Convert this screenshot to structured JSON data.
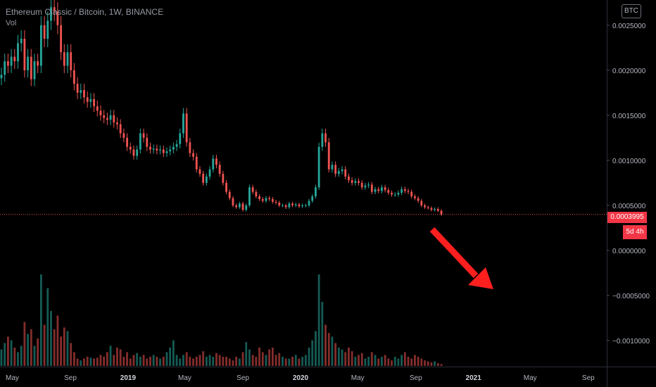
{
  "header": {
    "symbol_line": "Ethereum Classic / Bitcoin, 1W, BINANCE",
    "volume_label": "Vol"
  },
  "currency_badge": "BTC",
  "last_price_label": "0.0003995",
  "countdown_label": "5d 4h",
  "colors": {
    "up": "#26a69a",
    "down": "#ef5350",
    "arrow": "#ff1f1f",
    "last_price_line": "#ef5350"
  },
  "annotation": {
    "type": "arrow",
    "direction": "down-right",
    "color": "#ff1f1f"
  },
  "chart_data": {
    "type": "candlestick",
    "title": "Ethereum Classic / Bitcoin, 1W, BINANCE",
    "y_tick_labels": [
      "0.0025000",
      "0.0020000",
      "0.0015000",
      "0.0010000",
      "0.0005000",
      "0.0000000",
      "−0.0005000",
      "−0.0010000"
    ],
    "y_tick_values": [
      0.0025,
      0.002,
      0.0015,
      0.001,
      0.0005,
      0.0,
      -0.0005,
      -0.001
    ],
    "ylim": [
      -0.00129,
      0.00278
    ],
    "x_tick_labels": [
      "May",
      "Sep",
      "2019",
      "May",
      "Sep",
      "2020",
      "May",
      "Sep",
      "2021",
      "May",
      "Sep"
    ],
    "x_tick_dates": [
      "2018-05-01",
      "2018-09-01",
      "2019-01-01",
      "2019-05-01",
      "2019-09-01",
      "2020-01-01",
      "2020-05-01",
      "2020-09-01",
      "2021-01-01",
      "2021-05-01",
      "2021-09-01"
    ],
    "x_start": "2018-04-05",
    "x_end": "2021-10-10",
    "last_price": 0.0003995,
    "weekly_closes": [
      0.00195,
      0.0021,
      0.00205,
      0.00215,
      0.0021,
      0.0023,
      0.00235,
      0.002,
      0.00215,
      0.0019,
      0.0021,
      0.00205,
      0.0025,
      0.00235,
      0.00255,
      0.0027,
      0.00265,
      0.0025,
      0.0022,
      0.00205,
      0.0022,
      0.002,
      0.00185,
      0.00175,
      0.00178,
      0.0017,
      0.00165,
      0.00168,
      0.0016,
      0.00155,
      0.0015,
      0.00147,
      0.00145,
      0.0015,
      0.00142,
      0.0014,
      0.0013,
      0.00125,
      0.00115,
      0.00112,
      0.00105,
      0.00112,
      0.0013,
      0.00125,
      0.00115,
      0.00112,
      0.00113,
      0.00111,
      0.00112,
      0.00108,
      0.0011,
      0.00112,
      0.00115,
      0.00118,
      0.0013,
      0.00152,
      0.0012,
      0.00108,
      0.00104,
      0.0009,
      0.00085,
      0.00075,
      0.00082,
      0.0009,
      0.00102,
      0.00095,
      0.00085,
      0.00075,
      0.00065,
      0.00058,
      0.0005,
      0.00048,
      0.00052,
      0.00045,
      0.0005,
      0.0007,
      0.00065,
      0.0006,
      0.00057,
      0.00055,
      0.00058,
      0.00057,
      0.00054,
      0.00053,
      0.0005,
      0.0005,
      0.00048,
      0.00052,
      0.0005,
      0.00051,
      0.00049,
      0.0005,
      0.0005,
      0.00055,
      0.0006,
      0.0007,
      0.00115,
      0.0013,
      0.0012,
      0.0009,
      0.00095,
      0.00085,
      0.00088,
      0.0009,
      0.00082,
      0.00078,
      0.00075,
      0.00077,
      0.00075,
      0.0007,
      0.00072,
      0.00073,
      0.00065,
      0.00068,
      0.00066,
      0.0007,
      0.00067,
      0.00064,
      0.00062,
      0.00062,
      0.00064,
      0.00068,
      0.00066,
      0.00065,
      0.0006,
      0.00058,
      0.00055,
      0.0005,
      0.00048,
      0.00047,
      0.00045,
      0.00046,
      0.00044,
      0.0004
    ],
    "weekly_volumes": [
      0.18,
      0.25,
      0.32,
      0.28,
      0.2,
      0.15,
      0.22,
      0.48,
      0.35,
      0.4,
      0.22,
      0.3,
      1.0,
      0.45,
      0.85,
      0.6,
      0.4,
      0.55,
      0.32,
      0.42,
      0.38,
      0.25,
      0.15,
      0.08,
      0.06,
      0.08,
      0.1,
      0.09,
      0.08,
      0.09,
      0.12,
      0.1,
      0.15,
      0.22,
      0.12,
      0.2,
      0.18,
      0.1,
      0.15,
      0.08,
      0.12,
      0.14,
      0.1,
      0.12,
      0.08,
      0.1,
      0.12,
      0.1,
      0.08,
      0.1,
      0.15,
      0.2,
      0.28,
      0.12,
      0.08,
      0.12,
      0.15,
      0.1,
      0.08,
      0.1,
      0.12,
      0.16,
      0.1,
      0.12,
      0.1,
      0.14,
      0.12,
      0.1,
      0.1,
      0.08,
      0.06,
      0.1,
      0.08,
      0.15,
      0.26,
      0.18,
      0.12,
      0.1,
      0.2,
      0.15,
      0.12,
      0.18,
      0.2,
      0.12,
      0.14,
      0.1,
      0.08,
      0.08,
      0.1,
      0.12,
      0.08,
      0.1,
      0.12,
      0.2,
      0.28,
      0.38,
      1.0,
      0.7,
      0.45,
      0.36,
      0.32,
      0.25,
      0.2,
      0.18,
      0.15,
      0.2,
      0.16,
      0.1,
      0.12,
      0.14,
      0.08,
      0.1,
      0.15,
      0.12,
      0.08,
      0.1,
      0.12,
      0.08,
      0.06,
      0.1,
      0.08,
      0.12,
      0.15,
      0.1,
      0.08,
      0.12,
      0.1,
      0.08,
      0.06,
      0.05,
      0.04,
      0.05,
      0.03,
      0.02
    ]
  }
}
